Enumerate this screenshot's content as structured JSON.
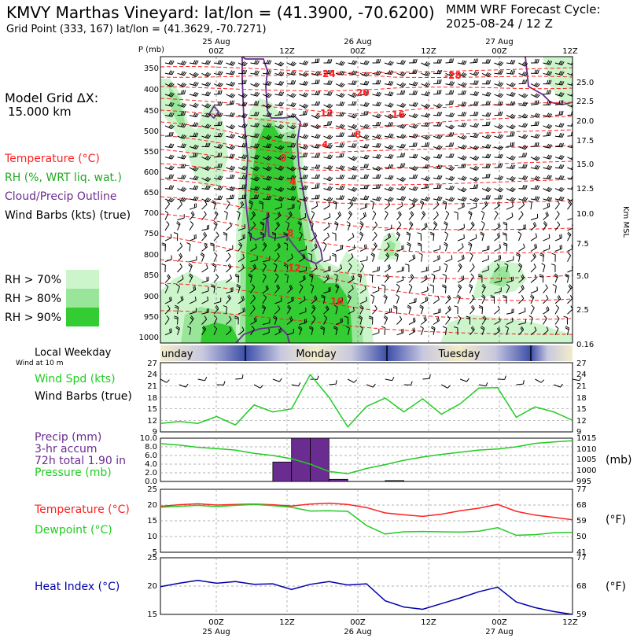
{
  "header": {
    "title": "KMVY Marthas Vineyard:  lat/lon = (41.3900, -70.6200)",
    "grid_point": "Grid Point (333, 167) lat/lon = (41.3629, -70.7271)",
    "cycle_line1": "MMM WRF Forecast Cycle:",
    "cycle_line2": "2025-08-24 / 12  Z",
    "grid_dx_line1": "Model Grid ΔX:",
    "grid_dx_line2": "15.000 km"
  },
  "legend": {
    "temperature": "Temperature (°C)",
    "rh": "RH (%, WRT liq. wat.)",
    "cloud": "Cloud/Precip Outline",
    "wind": "Wind Barbs (kts) (true)",
    "rh70": "RH > 70%",
    "rh80": "RH > 80%",
    "rh90": "RH > 90%",
    "colors": {
      "rh70": "#ccf5cc",
      "rh80": "#99e599",
      "rh90": "#33cc33",
      "temp": "#ff2020",
      "cloud": "#6b2c91"
    }
  },
  "panel_labels": {
    "weekday": "Local Weekday",
    "wind10": "Wind at 10 m",
    "wind_spd": "Wind Spd (kts)",
    "wind_barbs": "Wind Barbs (true)",
    "precip1": "Precip (mm)",
    "precip2": "3-hr accum",
    "precip3": "72h total 1.90 in",
    "pressure": "Pressure (mb)",
    "pressure_unit": "(mb)",
    "temp": "Temperature (°C)",
    "dewpoint": "Dewpoint (°C)",
    "temp_unit": "(°F)",
    "heat_index": "Heat Index (°C)",
    "hi_unit": "(°F)",
    "p_axis_unit": "P (mb)",
    "km_axis_unit": "Km MSL"
  },
  "time_axis": {
    "top_dates": [
      "25 Aug",
      "26 Aug",
      "27 Aug"
    ],
    "top_hours": [
      "00Z",
      "12Z",
      "00Z",
      "12Z",
      "00Z",
      "12Z"
    ],
    "bottom_hours": [
      "00Z",
      "12Z",
      "00Z",
      "12Z",
      "00Z",
      "12Z"
    ],
    "bottom_dates": [
      "25 Aug",
      "26 Aug",
      "27 Aug"
    ],
    "weekdays": [
      "unday",
      "Monday",
      "Tuesday"
    ]
  },
  "chart_data": [
    {
      "type": "contour",
      "name": "cross-section",
      "pressure_levels": [
        350,
        400,
        450,
        500,
        550,
        600,
        650,
        700,
        750,
        800,
        850,
        900,
        950,
        1000
      ],
      "height_ticks_km": [
        "25.0",
        "22.5",
        "20.0",
        "17.5",
        "15.0",
        "12.5",
        "10.0",
        "7.5",
        "5.0",
        "2.5",
        "0.16"
      ],
      "temperature_labels": [
        "-28",
        "-24",
        "-20",
        "-16",
        "-12",
        "-8",
        "-4",
        "0",
        "4",
        "8",
        "12",
        "16"
      ]
    },
    {
      "type": "line",
      "name": "wind-speed",
      "ylim": [
        9,
        27
      ],
      "yticks_left": [
        "27",
        "24",
        "21",
        "18",
        "15",
        "12",
        "9"
      ],
      "yticks_right": [
        "27",
        "24",
        "21",
        "18",
        "15",
        "12",
        "9"
      ],
      "values": [
        11.2,
        11.7,
        11.2,
        13.0,
        10.8,
        16.0,
        14.2,
        15.0,
        23.9,
        18.0,
        10.3,
        15.6,
        17.8,
        14.2,
        17.6,
        13.6,
        16.3,
        20.4,
        20.5,
        12.8,
        15.5,
        14.2,
        12.0
      ]
    },
    {
      "type": "bar+line",
      "name": "precip-pressure",
      "precip_ylim": [
        0,
        10
      ],
      "precip_yticks": [
        "10.0",
        "8.0",
        "6.0",
        "4.0",
        "2.0",
        "0.0"
      ],
      "pressure_ylim": [
        995,
        1015
      ],
      "pressure_yticks": [
        "1015",
        "1010",
        "1005",
        "1000",
        "995"
      ],
      "precip_values": [
        0,
        0,
        0,
        0,
        0,
        0,
        0,
        4.5,
        10.0,
        10.0,
        0.5,
        0,
        0,
        0.2,
        0,
        0,
        0,
        0,
        0,
        0,
        0,
        0,
        0
      ],
      "pressure_values": [
        1012.5,
        1011.8,
        1010.8,
        1010.2,
        1009.5,
        1008.0,
        1007.0,
        1005.5,
        1003.0,
        999.6,
        998.6,
        1001.0,
        1002.8,
        1004.8,
        1006.3,
        1007.5,
        1008.5,
        1009.5,
        1010.0,
        1011.0,
        1012.6,
        1013.3,
        1013.8
      ]
    },
    {
      "type": "line",
      "name": "temperature-dewpoint",
      "ylim": [
        5,
        25
      ],
      "yticks_left": [
        "25",
        "20",
        "15",
        "10",
        "5"
      ],
      "yticks_right": [
        "77",
        "68",
        "59",
        "50",
        "41"
      ],
      "series": [
        {
          "name": "Temperature",
          "color": "#ff2020",
          "values": [
            19.6,
            20.1,
            20.4,
            20.0,
            20.2,
            20.3,
            20.1,
            19.7,
            20.3,
            20.6,
            20.2,
            19.2,
            17.5,
            16.9,
            16.4,
            17.1,
            18.2,
            19.0,
            20.2,
            18.0,
            16.8,
            16.1,
            15.3
          ]
        },
        {
          "name": "Dewpoint",
          "color": "#22cc22",
          "values": [
            19.3,
            19.6,
            19.9,
            19.5,
            19.9,
            20.2,
            19.8,
            19.3,
            18.1,
            18.2,
            18.0,
            13.5,
            10.8,
            11.5,
            11.6,
            11.5,
            11.4,
            11.7,
            12.8,
            10.4,
            10.6,
            11.2,
            11.3
          ]
        }
      ]
    },
    {
      "type": "line",
      "name": "heat-index",
      "ylim": [
        15,
        25
      ],
      "yticks_left": [
        "25",
        "20",
        "15"
      ],
      "yticks_right": [
        "77",
        "68",
        "59"
      ],
      "series": [
        {
          "name": "Heat Index",
          "color": "#0000aa",
          "values": [
            19.9,
            20.5,
            21.0,
            20.5,
            20.8,
            20.3,
            20.4,
            19.4,
            20.3,
            20.8,
            20.2,
            20.4,
            17.4,
            16.3,
            15.9,
            16.9,
            17.9,
            19.0,
            19.8,
            17.2,
            16.2,
            15.5,
            15.0
          ]
        }
      ]
    }
  ]
}
